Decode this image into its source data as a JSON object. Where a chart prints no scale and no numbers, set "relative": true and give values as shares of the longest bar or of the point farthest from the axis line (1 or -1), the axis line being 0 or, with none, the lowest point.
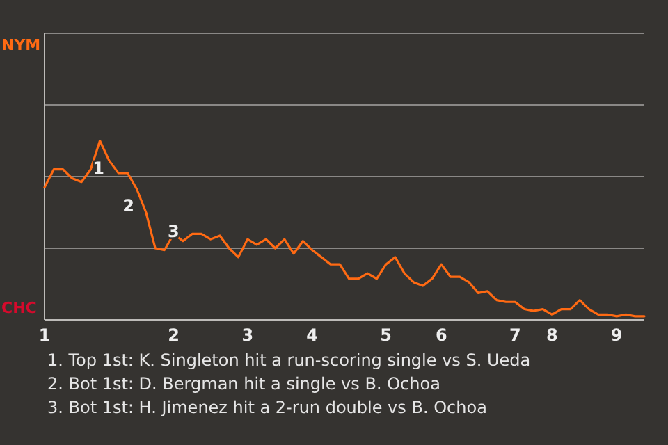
{
  "chart_data": {
    "type": "line",
    "relative": true,
    "categories": [
      "1",
      null,
      null,
      null,
      null,
      null,
      null,
      null,
      null,
      null,
      null,
      null,
      null,
      null,
      "2",
      null,
      null,
      null,
      null,
      null,
      null,
      null,
      "3",
      null,
      null,
      null,
      null,
      null,
      null,
      "4",
      null,
      null,
      null,
      null,
      null,
      null,
      null,
      "5",
      null,
      null,
      null,
      null,
      null,
      "6",
      null,
      null,
      null,
      null,
      null,
      null,
      null,
      "7",
      null,
      null,
      null,
      "8",
      null,
      null,
      null,
      null,
      null,
      null,
      "9",
      null,
      null,
      null
    ],
    "series": [
      {
        "color": "#ff6a13",
        "values": [
          0.74,
          0.84,
          0.84,
          0.79,
          0.77,
          0.84,
          1,
          0.89,
          0.82,
          0.82,
          0.73,
          0.6,
          0.4,
          0.39,
          0.48,
          0.44,
          0.48,
          0.48,
          0.45,
          0.47,
          0.4,
          0.35,
          0.45,
          0.42,
          0.45,
          0.4,
          0.45,
          0.37,
          0.44,
          0.39,
          0.35,
          0.31,
          0.31,
          0.23,
          0.23,
          0.26,
          0.23,
          0.31,
          0.35,
          0.26,
          0.21,
          0.19,
          0.23,
          0.31,
          0.24,
          0.24,
          0.21,
          0.15,
          0.16,
          0.11,
          0.1,
          0.1,
          0.06,
          0.05,
          0.06,
          0.03,
          0.06,
          0.06,
          0.11,
          0.06,
          0.03,
          0.03,
          0.02,
          0.03,
          0.02,
          0.02
        ]
      }
    ],
    "ref_lines": [
      {
        "axis": "y",
        "value": 0.4,
        "color": "#8a8886"
      },
      {
        "axis": "y",
        "value": 0.8,
        "color": "#8a8886"
      },
      {
        "axis": "y",
        "value": 1.2,
        "color": "#8a8886"
      },
      {
        "axis": "y",
        "value": 1.6,
        "color": "#8a8886"
      }
    ],
    "marker": "none",
    "line_style": "solid",
    "annotations": [
      "NYM",
      "CHC",
      "1",
      "2",
      "3",
      "1. Top 1st: K. Singleton hit a run-scoring single vs S. Ueda",
      "2. Bot 1st: D. Bergman hit a single vs B. Ochoa",
      "3. Bot 1st: H. Jimenez hit a 2-run double vs B. Ochoa"
    ]
  }
}
